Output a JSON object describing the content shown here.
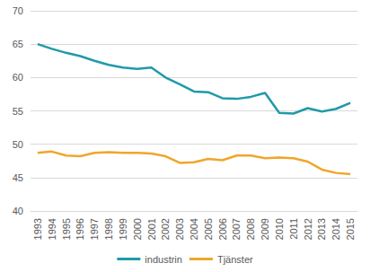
{
  "chart_data": {
    "type": "line",
    "categories": [
      "1993",
      "1994",
      "1995",
      "1996",
      "1997",
      "1998",
      "1999",
      "2000",
      "2001",
      "2002",
      "2003",
      "2004",
      "2005",
      "2006",
      "2007",
      "2008",
      "2009",
      "2010",
      "2011",
      "2012",
      "2013",
      "2014",
      "2015"
    ],
    "series": [
      {
        "name": "industrin",
        "color": "#1f9aa8",
        "values": [
          65.0,
          64.3,
          63.7,
          63.2,
          62.5,
          61.9,
          61.5,
          61.3,
          61.5,
          60.0,
          59.0,
          57.9,
          57.8,
          56.9,
          56.8,
          57.1,
          57.7,
          54.7,
          54.6,
          55.4,
          54.9,
          55.3,
          56.2
        ]
      },
      {
        "name": "Tjänster",
        "color": "#f0a62a",
        "values": [
          48.7,
          48.9,
          48.3,
          48.2,
          48.7,
          48.8,
          48.7,
          48.7,
          48.6,
          48.2,
          47.2,
          47.3,
          47.8,
          47.6,
          48.3,
          48.3,
          47.9,
          48.0,
          47.9,
          47.4,
          46.2,
          45.7,
          45.5
        ]
      }
    ],
    "ylim": [
      40,
      70
    ],
    "yticks": [
      40,
      45,
      50,
      55,
      60,
      65,
      70
    ],
    "grid": true,
    "legend": "bottom"
  }
}
